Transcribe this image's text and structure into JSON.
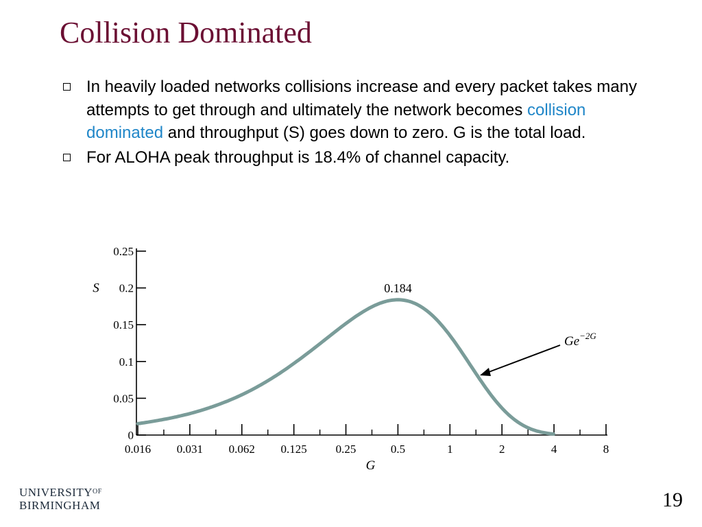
{
  "slide": {
    "title": "Collision Dominated",
    "bullets": [
      {
        "text_before": "In heavily loaded networks collisions increase and every packet takes many attempts to get through and ultimately the network becomes ",
        "highlight": "collision dominated",
        "text_after": " and throughput (S) goes down to zero.  G is the total load."
      },
      {
        "text_before": "For ALOHA peak throughput is 18.4% of channel capacity.",
        "highlight": "",
        "text_after": ""
      }
    ],
    "page_number": "19",
    "logo": {
      "line1": "UNIVERSITY",
      "superscript": "OF",
      "line2": "BIRMINGHAM"
    }
  },
  "colors": {
    "title": "#6b0f33",
    "highlight": "#1f86c8",
    "curve": "#7a9c99",
    "axis": "#000000"
  },
  "chart_data": {
    "type": "line",
    "xlabel": "G",
    "ylabel": "S",
    "x_scale": "log2",
    "x_ticks": [
      "0.016",
      "0.031",
      "0.062",
      "0.125",
      "0.25",
      "0.5",
      "1",
      "2",
      "4",
      "8"
    ],
    "y_ticks": [
      "0",
      "0.05",
      "0.1",
      "0.15",
      "0.2",
      "0.25"
    ],
    "ylim": [
      0,
      0.25
    ],
    "xlim": [
      0.016,
      8
    ],
    "series": [
      {
        "formula": "G*exp(-2G)",
        "x": [
          0.016,
          0.031,
          0.062,
          0.125,
          0.25,
          0.5,
          1,
          2,
          4,
          8
        ],
        "y": [
          0.0155,
          0.0291,
          0.0548,
          0.0974,
          0.1516,
          0.1839,
          0.1353,
          0.0366,
          0.0013,
          0.0
        ]
      }
    ],
    "annotations": [
      {
        "text": "0.184",
        "x": 0.5,
        "y": 0.184
      }
    ],
    "curve_label": {
      "base": "Ge",
      "exponent": "−2G"
    }
  }
}
